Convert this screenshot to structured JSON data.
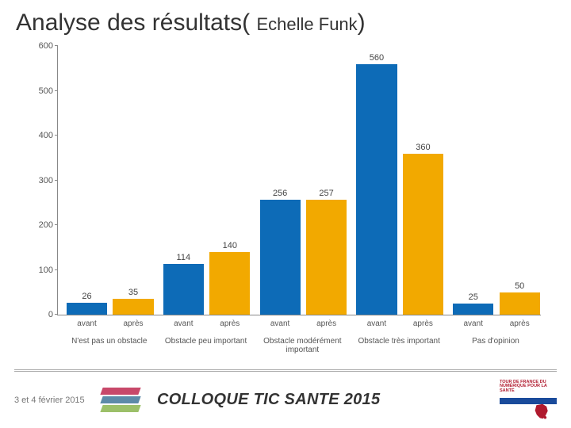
{
  "title_main": "Analyse des résultats( ",
  "title_sub": "Echelle Funk",
  "title_close": ")",
  "footer": {
    "date": "3 et 4 février 2015",
    "colloque": "COLLOQUE TIC SANTE 2015",
    "right_logo_text": "TOUR DE FRANCE\nDU NUMÉRIQUE\nPOUR LA SANTÉ"
  },
  "chart": {
    "type": "bar",
    "ylim": [
      0,
      600
    ],
    "ytick_step": 100,
    "yticks": [
      0,
      100,
      200,
      300,
      400,
      500,
      600
    ],
    "bar_colors_alt": [
      "#0d6bb7",
      "#f2a900"
    ],
    "tick_color": "#888888",
    "text_color": "#555555",
    "label_fontsize": 11,
    "sub_labels": [
      "avant",
      "après"
    ],
    "groups": [
      {
        "label": "N'est pas un obstacle",
        "values": [
          26,
          35
        ]
      },
      {
        "label": "Obstacle peu important",
        "values": [
          114,
          140
        ]
      },
      {
        "label": "Obstacle modérément important",
        "values": [
          256,
          257
        ]
      },
      {
        "label": "Obstacle très important",
        "values": [
          560,
          360
        ]
      },
      {
        "label": "Pas d'opinion",
        "values": [
          25,
          50
        ]
      }
    ],
    "bar_width_pct": 8.4,
    "group_gap_pct": 1.2,
    "cluster_gap_pct": 2.0,
    "left_pad_pct": 1.8
  }
}
